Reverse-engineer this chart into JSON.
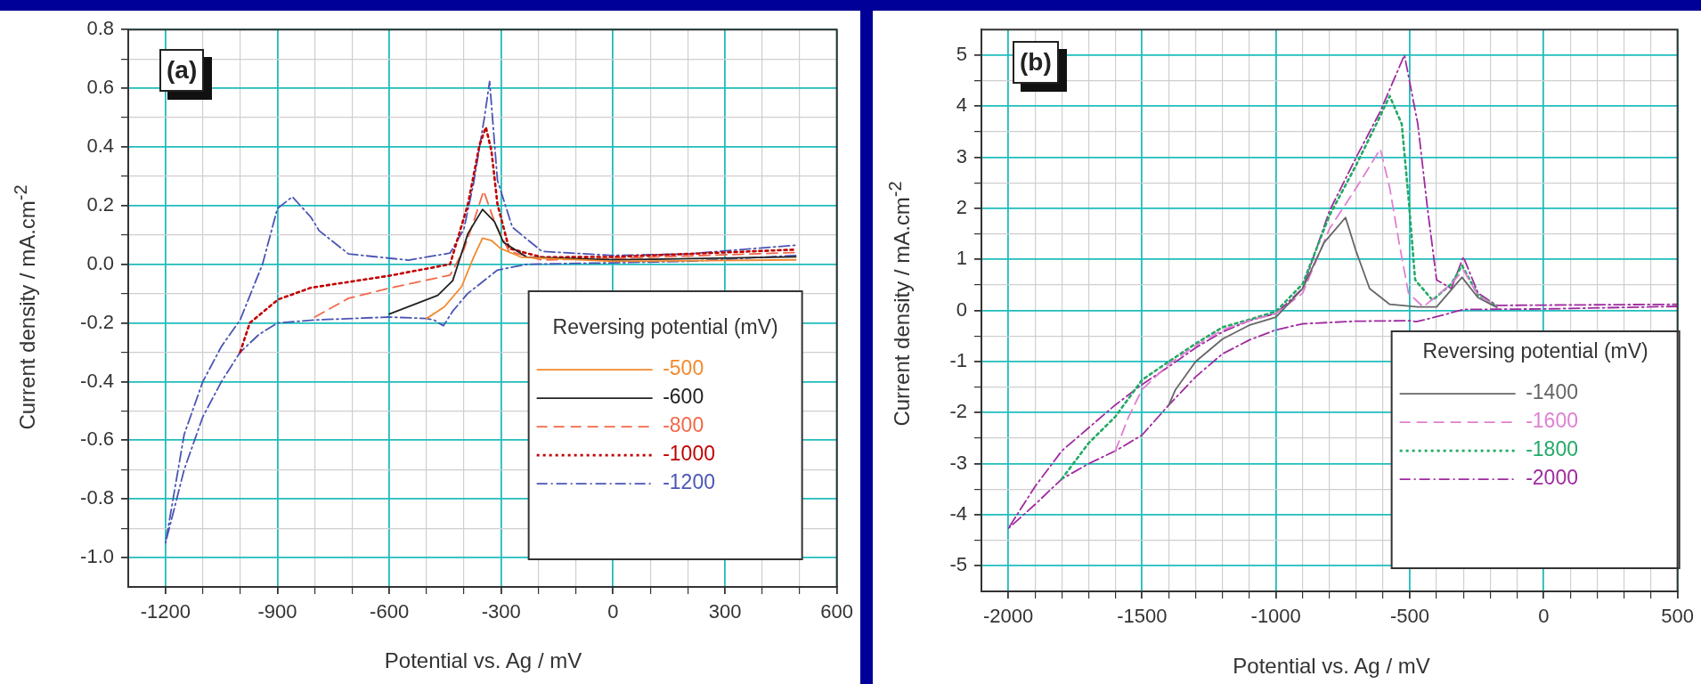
{
  "chart_data": [
    {
      "type": "line",
      "annotations": [
        "(a)"
      ],
      "xlabel": "Potential vs. Ag / mV",
      "ylabel": "Current density / mA.cm$^{-2}$",
      "legend_title": "Reversing potential (mV)",
      "legend": "bottom right",
      "grid": true,
      "marker": "none",
      "xlim": [
        -1300,
        600
      ],
      "ylim": [
        -1.1,
        0.8
      ],
      "xticks": [
        -1200,
        {
          "value": -1100,
          "label": null
        },
        {
          "value": -1000,
          "label": null
        },
        -900,
        {
          "value": -800,
          "label": null
        },
        {
          "value": -700,
          "label": null
        },
        -600,
        {
          "value": -500,
          "label": null
        },
        {
          "value": -400,
          "label": null
        },
        -300,
        {
          "value": -200,
          "label": null
        },
        {
          "value": -100,
          "label": null
        },
        0,
        {
          "value": 100,
          "label": null
        },
        {
          "value": 200,
          "label": null
        },
        300,
        {
          "value": 400,
          "label": null
        },
        {
          "value": 500,
          "label": null
        },
        600
      ],
      "yticks": [
        0.8,
        {
          "value": 0.7,
          "label": null
        },
        0.6,
        {
          "value": 0.5,
          "label": null
        },
        0.4,
        {
          "value": 0.3,
          "label": null
        },
        0.2,
        {
          "value": 0.1,
          "label": null
        },
        {
          "value": 0,
          "label": "0.0"
        },
        {
          "value": -0.1,
          "label": null
        },
        -0.2,
        {
          "value": -0.3,
          "label": null
        },
        -0.4,
        {
          "value": -0.5,
          "label": null
        },
        -0.6,
        {
          "value": -0.7,
          "label": null
        },
        -0.8,
        {
          "value": -0.9,
          "label": null
        },
        {
          "value": -1,
          "label": "-1.0"
        }
      ],
      "series": [
        {
          "name": "-500",
          "color": "#f28a2e",
          "line_style": "solid",
          "x": [
            -500,
            -453,
            -406,
            -374,
            -350,
            -326,
            -302,
            -246,
            0,
            490
          ],
          "values": [
            -0.185,
            -0.146,
            -0.076,
            0.024,
            0.089,
            0.081,
            0.054,
            0.024,
            0.01,
            0.015
          ]
        },
        {
          "name": "-600",
          "color": "#222222",
          "line_style": "solid",
          "x": [
            -600,
            -470,
            -430,
            -389,
            -350,
            -318,
            -294,
            -231,
            0,
            490
          ],
          "values": [
            -0.17,
            -0.106,
            -0.056,
            0.105,
            0.187,
            0.145,
            0.075,
            0.024,
            0.015,
            0.025
          ]
        },
        {
          "name": "-800",
          "color": "#f2684a",
          "line_style": "dashed",
          "x": [
            -800,
            -709,
            -604,
            -437,
            -400,
            -370,
            -347,
            -318,
            -279,
            -191,
            0,
            490
          ],
          "values": [
            -0.18,
            -0.116,
            -0.083,
            -0.037,
            0.05,
            0.16,
            0.25,
            0.145,
            0.044,
            0.014,
            0.02,
            0.04
          ]
        },
        {
          "name": "-1000",
          "color": "#c00000",
          "line_style": "dotted",
          "x": [
            -1000,
            -974,
            -898,
            -810,
            -604,
            -437,
            -389,
            -358,
            -341,
            -326,
            -310,
            -279,
            -191,
            0,
            490
          ],
          "values": [
            -0.3,
            -0.2,
            -0.12,
            -0.08,
            -0.04,
            0,
            0.205,
            0.407,
            0.467,
            0.386,
            0.205,
            0.054,
            0.024,
            0.025,
            0.05
          ]
        },
        {
          "name": "-1200",
          "color": "#4a55b5",
          "line_style": "dashdot",
          "x": [
            490,
            200,
            0,
            -230,
            -310,
            -390,
            -430,
            -455,
            -480,
            -500,
            -600,
            -700,
            -800,
            -900,
            -950,
            -1000,
            -1050,
            -1100,
            -1150,
            -1200,
            -1150,
            -1100,
            -1050,
            -1000,
            -940,
            -900,
            -860,
            -810,
            -788,
            -709,
            -549,
            -437,
            -400,
            -374,
            -345,
            -331,
            -310,
            -270,
            -191,
            0,
            200,
            490
          ],
          "values": [
            0.03,
            0.01,
            0.005,
            0,
            -0.02,
            -0.1,
            -0.16,
            -0.21,
            -0.19,
            -0.185,
            -0.18,
            -0.185,
            -0.19,
            -0.2,
            -0.24,
            -0.3,
            -0.4,
            -0.52,
            -0.7,
            -0.95,
            -0.58,
            -0.4,
            -0.28,
            -0.19,
            0,
            0.19,
            0.23,
            0.16,
            0.114,
            0.035,
            0.014,
            0.038,
            0.12,
            0.276,
            0.5,
            0.623,
            0.286,
            0.126,
            0.044,
            0.03,
            0.035,
            0.065
          ]
        }
      ]
    },
    {
      "type": "line",
      "annotations": [
        "(b)"
      ],
      "xlabel": "Potential vs. Ag / mV",
      "ylabel": "Current density / mA.cm$^{-2}$",
      "legend_title": "Reversing potential (mV)",
      "legend": "bottom right",
      "grid": true,
      "marker": "none",
      "xlim": [
        -2100,
        500
      ],
      "ylim": [
        -5.5,
        5.5
      ],
      "xticks": [
        -2000,
        {
          "value": -1900,
          "label": null
        },
        {
          "value": -1800,
          "label": null
        },
        {
          "value": -1700,
          "label": null
        },
        {
          "value": -1600,
          "label": null
        },
        -1500,
        {
          "value": -1400,
          "label": null
        },
        {
          "value": -1300,
          "label": null
        },
        {
          "value": -1200,
          "label": null
        },
        {
          "value": -1100,
          "label": null
        },
        -1000,
        {
          "value": -900,
          "label": null
        },
        {
          "value": -800,
          "label": null
        },
        {
          "value": -700,
          "label": null
        },
        {
          "value": -600,
          "label": null
        },
        -500,
        {
          "value": -400,
          "label": null
        },
        {
          "value": -300,
          "label": null
        },
        {
          "value": -200,
          "label": null
        },
        {
          "value": -100,
          "label": null
        },
        0,
        {
          "value": 100,
          "label": null
        },
        {
          "value": 200,
          "label": null
        },
        {
          "value": 300,
          "label": null
        },
        {
          "value": 400,
          "label": null
        },
        500
      ],
      "yticks": [
        5,
        {
          "value": 4.5,
          "label": null
        },
        4,
        {
          "value": 3.5,
          "label": null
        },
        3,
        {
          "value": 2.5,
          "label": null
        },
        2,
        {
          "value": 1.5,
          "label": null
        },
        1,
        {
          "value": 0.5,
          "label": null
        },
        0,
        {
          "value": -0.5,
          "label": null
        },
        -1,
        {
          "value": -1.5,
          "label": null
        },
        -2,
        {
          "value": -2.5,
          "label": null
        },
        -3,
        {
          "value": -3.5,
          "label": null
        },
        -4,
        {
          "value": -4.5,
          "label": null
        },
        -5
      ],
      "series": [
        {
          "name": "-1400",
          "color": "#666666",
          "line_style": "solid",
          "x": [
            -1400,
            -1375,
            -1300,
            -1200,
            -1100,
            -1000,
            -900,
            -820,
            -740,
            -700,
            -650,
            -575,
            -470,
            -400,
            -305,
            -245,
            -175
          ],
          "values": [
            -1.85,
            -1.55,
            -1,
            -0.56,
            -0.29,
            -0.13,
            0.43,
            1.33,
            1.82,
            1.15,
            0.43,
            0.12,
            0.07,
            0.07,
            0.65,
            0.25,
            0.06
          ]
        },
        {
          "name": "-1600",
          "color": "#e07fd2",
          "line_style": "dashed",
          "x": [
            -1600,
            -1550,
            -1500,
            -1400,
            -1300,
            -1200,
            -1100,
            -1000,
            -900,
            -800,
            -700,
            -610,
            -575,
            -540,
            -505,
            -450,
            -345,
            -300,
            -245,
            -175
          ],
          "values": [
            -2.75,
            -2.08,
            -1.55,
            -1.05,
            -0.69,
            -0.38,
            -0.2,
            -0.06,
            0.34,
            1.6,
            2.4,
            3.16,
            2.4,
            1.33,
            0.34,
            0.07,
            0.52,
            0.79,
            0.3,
            0.07
          ]
        },
        {
          "name": "-1800",
          "color": "#22aa66",
          "line_style": "dotted",
          "x": [
            -1800,
            -1700,
            -1600,
            -1500,
            -1400,
            -1300,
            -1200,
            -1100,
            -1000,
            -900,
            -800,
            -700,
            -625,
            -575,
            -530,
            -505,
            -480,
            -415,
            -345,
            -305,
            -245,
            -175
          ],
          "values": [
            -3.3,
            -2.6,
            -2.08,
            -1.36,
            -1,
            -0.65,
            -0.33,
            -0.18,
            -0.02,
            0.52,
            1.86,
            2.85,
            3.65,
            4.2,
            3.65,
            2.22,
            0.6,
            0.2,
            0.52,
            0.88,
            0.3,
            0.08
          ]
        },
        {
          "name": "-2000",
          "color": "#a02aa0",
          "line_style": "dashdot",
          "x": [
            500,
            0,
            -300,
            -420,
            -476,
            -500,
            -700,
            -900,
            -1000,
            -1100,
            -1200,
            -1300,
            -1400,
            -1500,
            -1600,
            -1700,
            -1800,
            -1900,
            -2000,
            -1900,
            -1800,
            -1700,
            -1600,
            -1500,
            -1400,
            -1300,
            -1200,
            -1100,
            -1000,
            -900,
            -800,
            -700,
            -610,
            -520,
            -470,
            -435,
            -400,
            -345,
            -300,
            -245,
            -175,
            500
          ],
          "values": [
            0.08,
            0.03,
            0.02,
            -0.15,
            -0.22,
            -0.2,
            -0.21,
            -0.26,
            -0.38,
            -0.58,
            -0.85,
            -1.3,
            -1.85,
            -2.44,
            -2.75,
            -3,
            -3.3,
            -3.8,
            -4.27,
            -3.45,
            -2.75,
            -2.3,
            -1.85,
            -1.45,
            -1.1,
            -0.73,
            -0.42,
            -0.2,
            -0.06,
            0.43,
            1.95,
            3,
            3.9,
            5,
            3.65,
            2.05,
            0.6,
            0.43,
            1.05,
            0.34,
            0.1,
            0.12
          ]
        }
      ]
    }
  ]
}
